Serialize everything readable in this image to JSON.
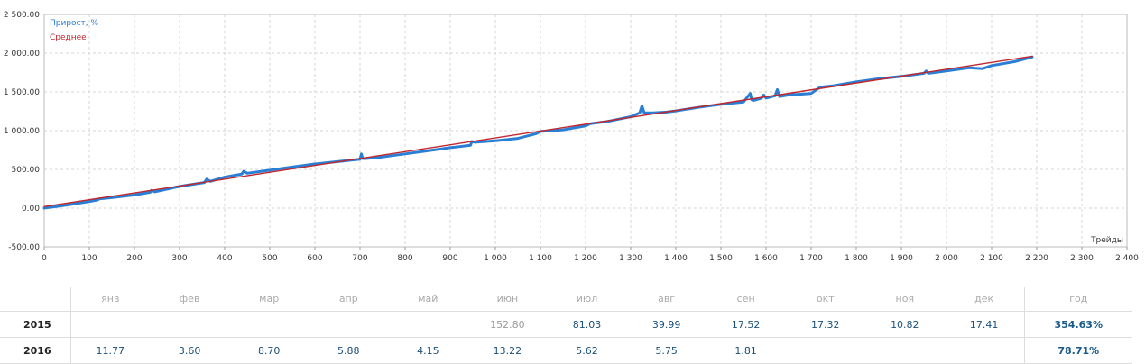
{
  "chart_data": {
    "type": "line",
    "xlabel": "Трейды",
    "ylabel": "",
    "xlim": [
      0,
      2400
    ],
    "ylim": [
      -500,
      2500
    ],
    "x_ticks": [
      "0",
      "100",
      "200",
      "300",
      "400",
      "500",
      "600",
      "700",
      "800",
      "900",
      "1 000",
      "1 100",
      "1 200",
      "1 300",
      "1 400",
      "1 500",
      "1 600",
      "1 700",
      "1 800",
      "1 900",
      "2 000",
      "2 100",
      "2 200",
      "2 300",
      "2 400"
    ],
    "y_ticks": [
      "2 500.00",
      "2 000.00",
      "1 500.00",
      "1 000.00",
      "500.00",
      "0.00",
      "-500.00"
    ],
    "grid": true,
    "legend_position": "top-left",
    "cursor_x": 1385,
    "series": [
      {
        "name": "Прирост, %",
        "color": "#2a7fd4",
        "x": [
          0,
          50,
          100,
          118,
          122,
          150,
          200,
          235,
          238,
          245,
          300,
          355,
          360,
          368,
          400,
          438,
          442,
          450,
          500,
          550,
          600,
          650,
          700,
          703,
          706,
          712,
          750,
          800,
          850,
          900,
          945,
          948,
          955,
          1000,
          1050,
          1090,
          1100,
          1150,
          1200,
          1210,
          1250,
          1300,
          1320,
          1325,
          1330,
          1350,
          1380,
          1400,
          1450,
          1500,
          1550,
          1565,
          1568,
          1572,
          1590,
          1595,
          1600,
          1620,
          1625,
          1630,
          1650,
          1700,
          1720,
          1750,
          1800,
          1850,
          1900,
          1950,
          1955,
          1960,
          2000,
          2050,
          2080,
          2100,
          2150,
          2190
        ],
        "y": [
          0,
          40,
          85,
          105,
          120,
          135,
          170,
          205,
          230,
          210,
          280,
          330,
          375,
          345,
          400,
          440,
          475,
          450,
          490,
          530,
          570,
          600,
          630,
          700,
          640,
          640,
          660,
          700,
          740,
          780,
          810,
          860,
          850,
          870,
          900,
          960,
          990,
          1010,
          1060,
          1090,
          1120,
          1180,
          1230,
          1320,
          1230,
          1230,
          1240,
          1255,
          1300,
          1340,
          1370,
          1480,
          1400,
          1390,
          1420,
          1460,
          1420,
          1450,
          1530,
          1440,
          1460,
          1480,
          1560,
          1580,
          1630,
          1670,
          1700,
          1740,
          1770,
          1740,
          1770,
          1810,
          1800,
          1840,
          1890,
          1950
        ]
      },
      {
        "name": "Среднее",
        "color": "#c0262c",
        "x": [
          0,
          2190
        ],
        "y": [
          20,
          1960
        ]
      }
    ]
  },
  "table": {
    "headers": [
      "янв",
      "фев",
      "мар",
      "апр",
      "май",
      "июн",
      "июл",
      "авг",
      "сен",
      "окт",
      "ноя",
      "дек",
      "год"
    ],
    "rows": [
      {
        "year": "2015",
        "values": [
          "",
          "",
          "",
          "",
          "",
          "152.80",
          "81.03",
          "39.99",
          "17.52",
          "17.32",
          "10.82",
          "17.41"
        ],
        "total": "354.63%"
      },
      {
        "year": "2016",
        "values": [
          "11.77",
          "3.60",
          "8.70",
          "5.88",
          "4.15",
          "13.22",
          "5.62",
          "5.75",
          "1.81",
          "",
          "",
          ""
        ],
        "total": "78.71%"
      }
    ]
  }
}
